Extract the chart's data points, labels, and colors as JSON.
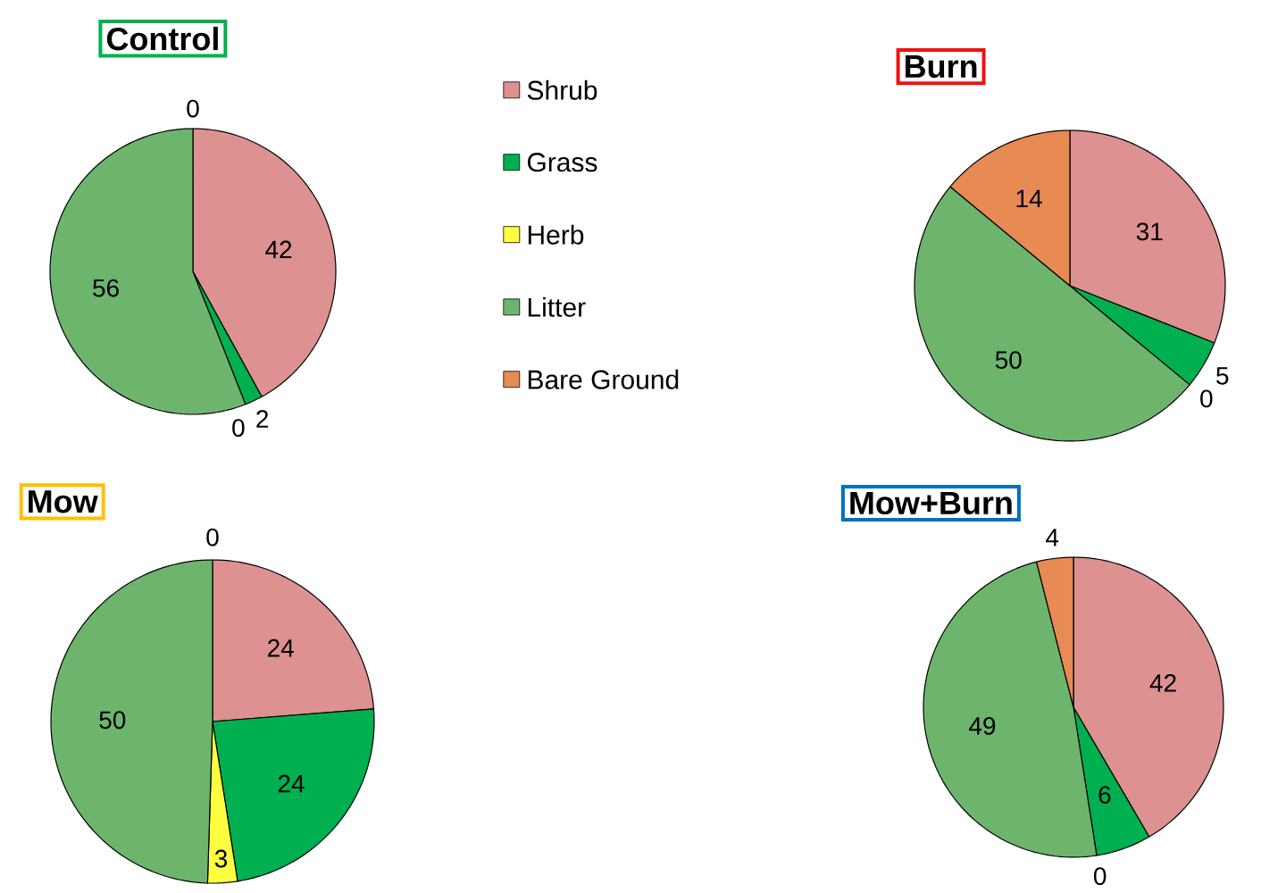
{
  "chart_data": [
    {
      "type": "pie",
      "title": "Control",
      "categories": [
        "Shrub",
        "Grass",
        "Herb",
        "Litter",
        "Bare Ground"
      ],
      "values": [
        42,
        2,
        0,
        56,
        0
      ],
      "value_labels": [
        "42",
        "2",
        "0",
        "56",
        "0"
      ],
      "colors": [
        "#dd9190",
        "#00b050",
        "#ffff40",
        "#6db56d",
        "#e88a53"
      ],
      "legend": "right"
    },
    {
      "type": "pie",
      "title": "Burn",
      "categories": [
        null,
        null,
        null,
        null,
        null
      ],
      "values": [
        31,
        5,
        0,
        50,
        14
      ],
      "value_labels": [
        "31",
        "5",
        "0",
        "50",
        "14"
      ],
      "colors": [
        "#dd9190",
        "#00b050",
        "#ffff40",
        "#6db56d",
        "#e88a53"
      ]
    },
    {
      "type": "pie",
      "title": "Mow",
      "categories": [
        null,
        null,
        null,
        null,
        null
      ],
      "values": [
        24,
        24,
        3,
        50,
        0
      ],
      "value_labels": [
        "24",
        "24",
        "3",
        "50",
        "0"
      ],
      "colors": [
        "#dd9190",
        "#00b050",
        "#ffff40",
        "#6db56d",
        "#e88a53"
      ]
    },
    {
      "type": "pie",
      "title": "Mow+Burn",
      "categories": [
        null,
        null,
        null,
        null,
        null
      ],
      "values": [
        42,
        6,
        0,
        49,
        4
      ],
      "value_labels": [
        "42",
        "6",
        "0",
        "49",
        "4"
      ],
      "colors": [
        "#dd9190",
        "#00b050",
        "#ffff40",
        "#6db56d",
        "#e88a53"
      ]
    }
  ]
}
